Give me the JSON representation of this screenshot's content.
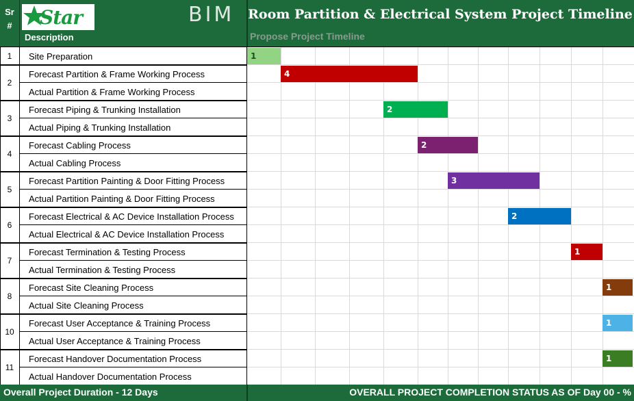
{
  "header": {
    "sr_label": "Sr\n#",
    "description_label": "Description",
    "logo_text": "Star",
    "bim_text": "BIM",
    "title": "Room Partition & Electrical System Project Timeline",
    "subtitle": "Propose Project Timeline"
  },
  "colors": {
    "header_green": "#1d6b3a",
    "logo_green": "#1a9a3f",
    "subtitle_gray": "#8a9a90"
  },
  "rows": [
    {
      "sr": "1",
      "tasks": [
        "Site Preparation"
      ]
    },
    {
      "sr": "2",
      "tasks": [
        "Forecast Partition & Frame Working Process",
        "Actual  Partition & Frame Working Process"
      ]
    },
    {
      "sr": "3",
      "tasks": [
        "Forecast Piping & Trunking Installation",
        "Actual Piping & Trunking Installation"
      ]
    },
    {
      "sr": "4",
      "tasks": [
        "Forecast Cabling Process",
        "Actual Cabling Process"
      ]
    },
    {
      "sr": "5",
      "tasks": [
        "Forecast Partition Painting & Door Fitting Process",
        "Actual Partition Painting & Door Fitting Process"
      ]
    },
    {
      "sr": "6",
      "tasks": [
        "Forecast Electrical & AC Device Installation Process",
        "Actual Electrical & AC Device Installation Process"
      ]
    },
    {
      "sr": "7",
      "tasks": [
        "Forecast Termination & Testing Process",
        "Actual Termination & Testing Process"
      ]
    },
    {
      "sr": "8",
      "tasks": [
        "Forecast Site Cleaning Process",
        "Actual Site Cleaning Process"
      ]
    },
    {
      "sr": "10",
      "tasks": [
        "Forecast User Acceptance & Training Process",
        "Actual User Acceptance & Training Process"
      ]
    },
    {
      "sr": "11",
      "tasks": [
        "Forecast Handover Documentation Process",
        "Actual Handover Documentation Process"
      ]
    }
  ],
  "timeline": {
    "days": 12,
    "bars": [
      {
        "label": "1",
        "row": 0,
        "start": 0,
        "end": 1,
        "color": "#92d384"
      },
      {
        "label": "4",
        "row": 1,
        "start": 1,
        "end": 5,
        "color": "#c00000"
      },
      {
        "label": "2",
        "row": 3,
        "start": 4,
        "end": 6,
        "color": "#00b050"
      },
      {
        "label": "2",
        "row": 5,
        "start": 5,
        "end": 7,
        "color": "#7b2170"
      },
      {
        "label": "3",
        "row": 7,
        "start": 6,
        "end": 9,
        "color": "#7030a0"
      },
      {
        "label": "2",
        "row": 9,
        "start": 8,
        "end": 10,
        "color": "#0070c0"
      },
      {
        "label": "1",
        "row": 11,
        "start": 10,
        "end": 11,
        "color": "#c00000"
      },
      {
        "label": "1",
        "row": 13,
        "start": 11,
        "end": 12,
        "color": "#843c0c"
      },
      {
        "label": "1",
        "row": 15,
        "start": 11,
        "end": 12,
        "color": "#4db3e6"
      },
      {
        "label": "1",
        "row": 17,
        "start": 11,
        "end": 12,
        "color": "#3b7d23"
      }
    ]
  },
  "footer": {
    "duration": "Overall Project Duration - 12 Days",
    "status": "OVERALL PROJECT COMPLETION STATUS AS OF Day 00 - %"
  }
}
